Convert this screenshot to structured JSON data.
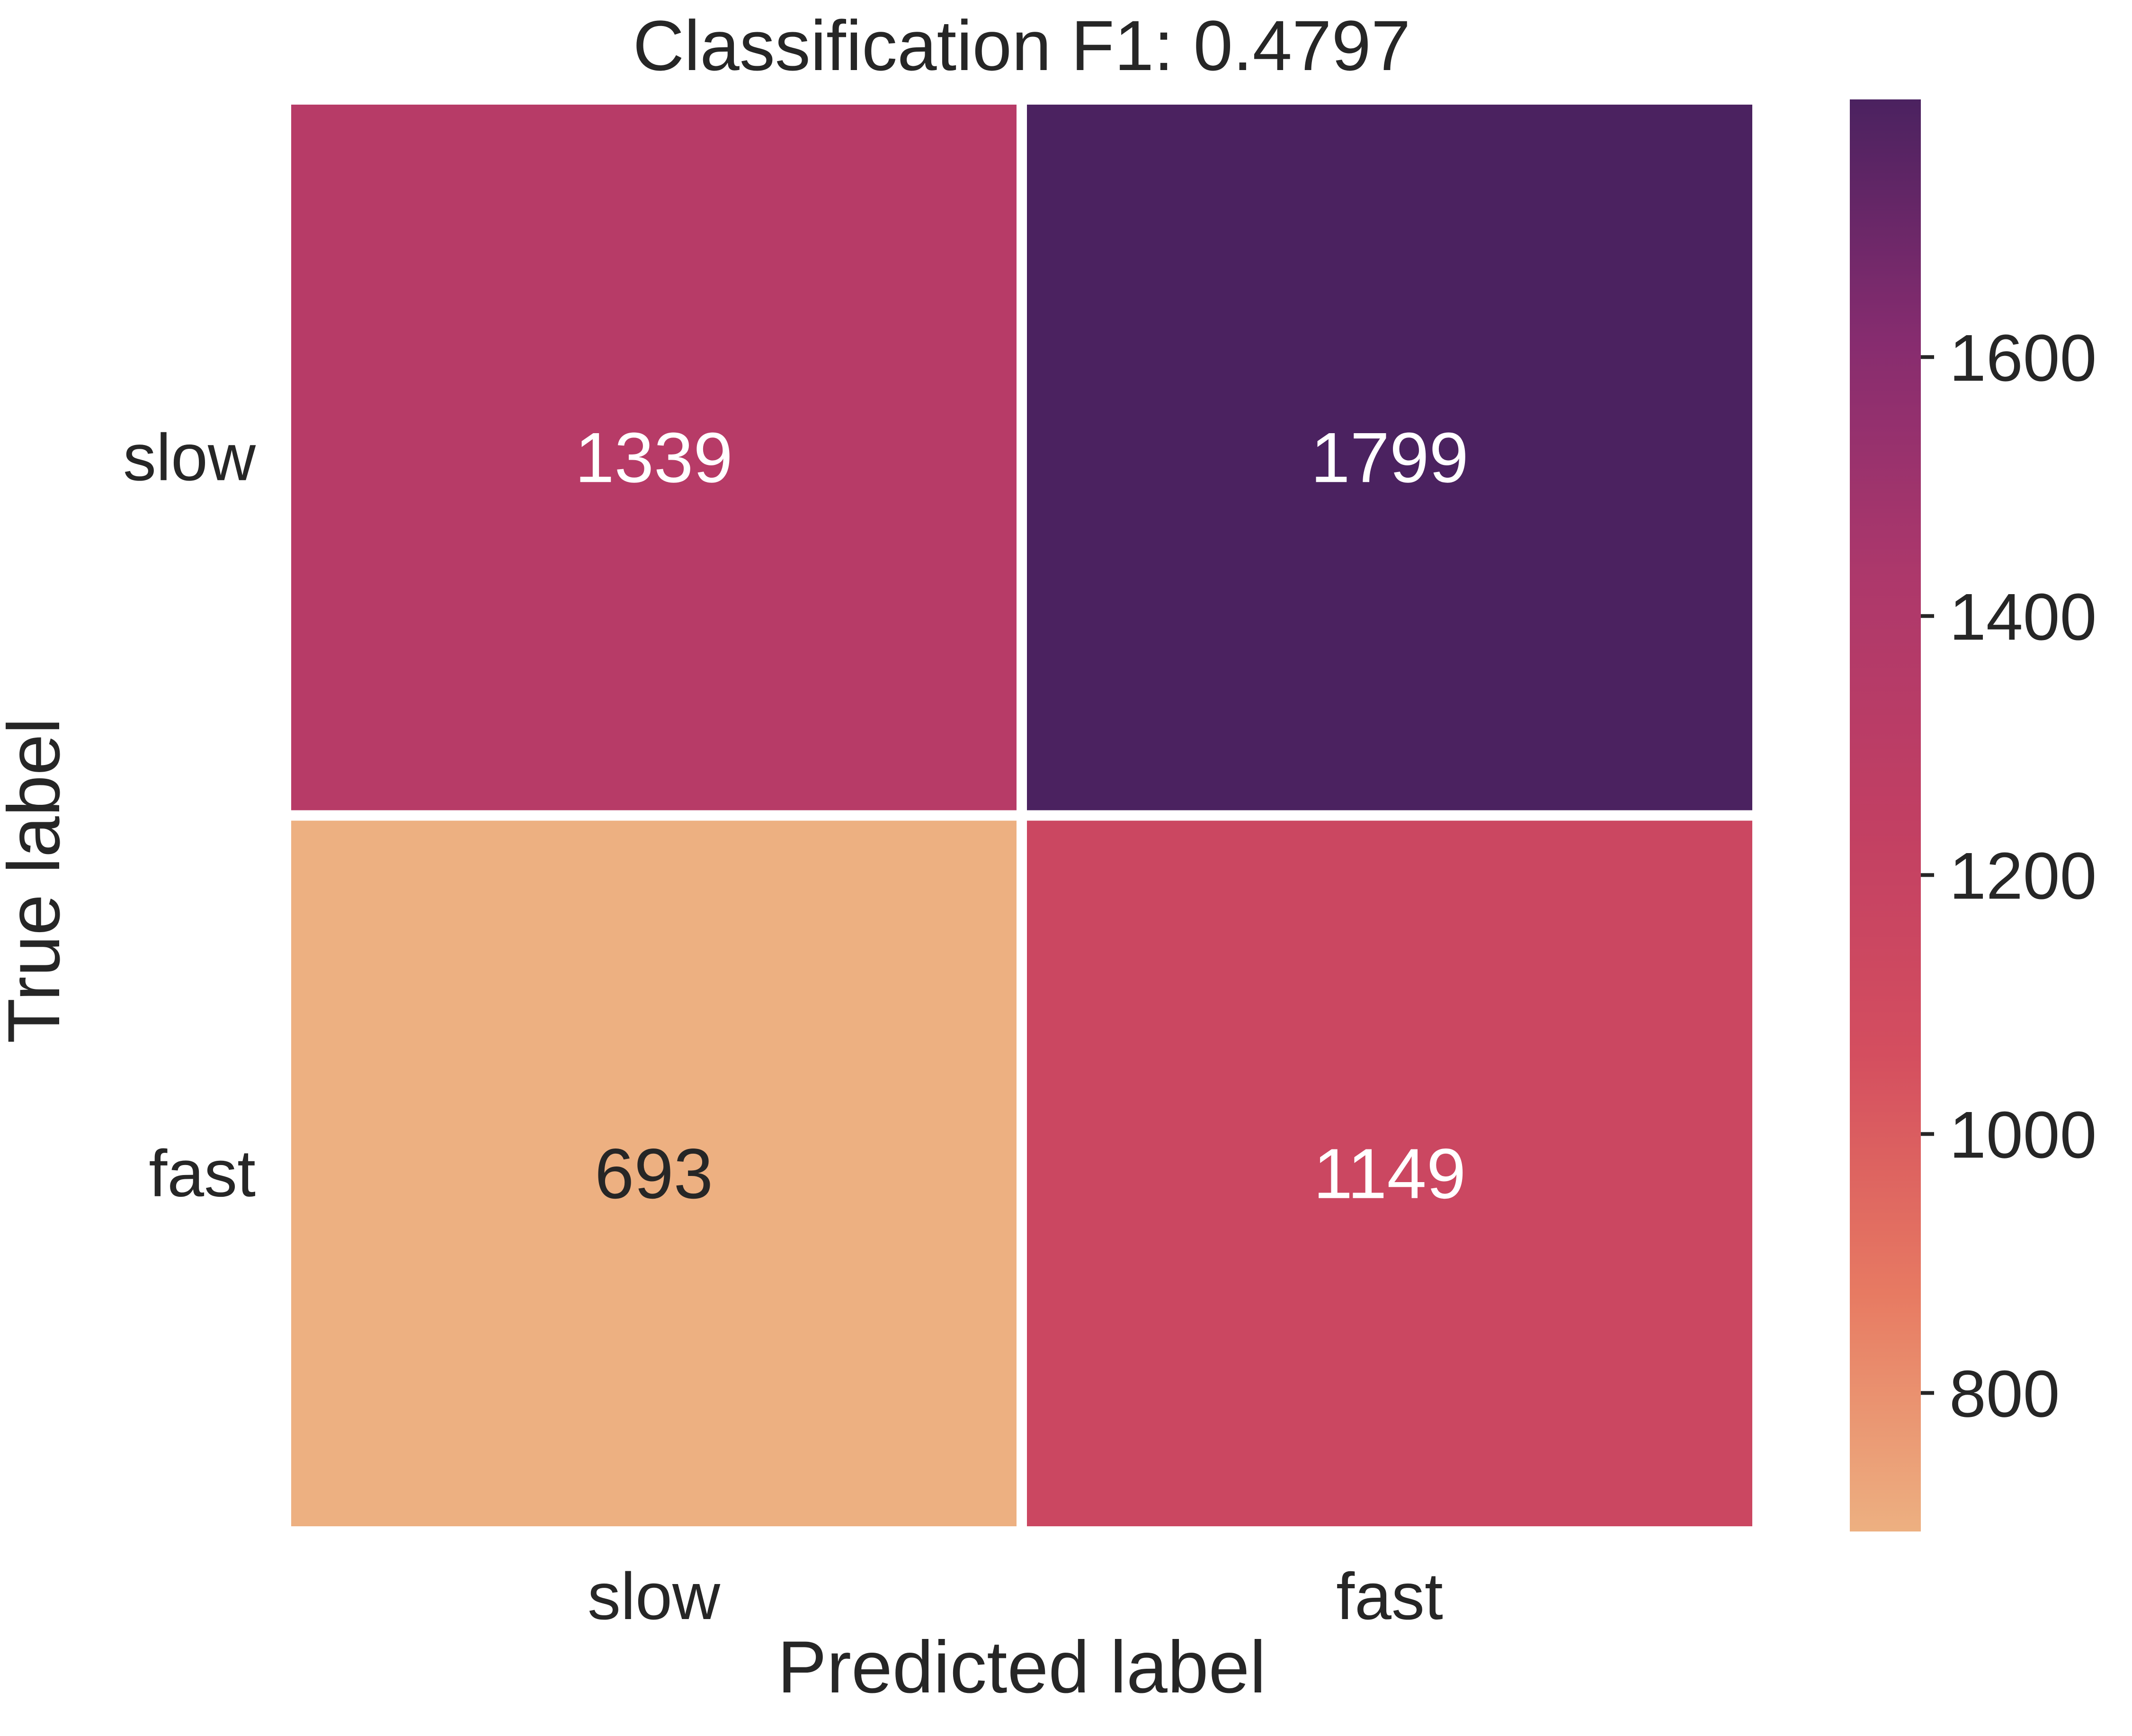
{
  "chart_data": {
    "type": "heatmap",
    "title": "Classification F1: 0.4797",
    "xlabel": "Predicted label",
    "ylabel": "True label",
    "x_categories": [
      "slow",
      "fast"
    ],
    "y_categories": [
      "slow",
      "fast"
    ],
    "values": [
      [
        1339,
        1799
      ],
      [
        693,
        1149
      ]
    ],
    "colorbar": {
      "min": 693,
      "max": 1799,
      "ticks": [
        800,
        1000,
        1200,
        1400,
        1600
      ],
      "tick_labels": [
        "800",
        "1000",
        "1200",
        "1400",
        "1600"
      ]
    },
    "colormap": {
      "name": "flare",
      "stops": [
        "#edb081",
        "#e77a62",
        "#d44e5f",
        "#c13f63",
        "#ad386b",
        "#862c6f",
        "#4b2260"
      ]
    },
    "grid": false,
    "annotation_colors": {
      "dark": "#262626",
      "light": "#ffffff"
    }
  }
}
